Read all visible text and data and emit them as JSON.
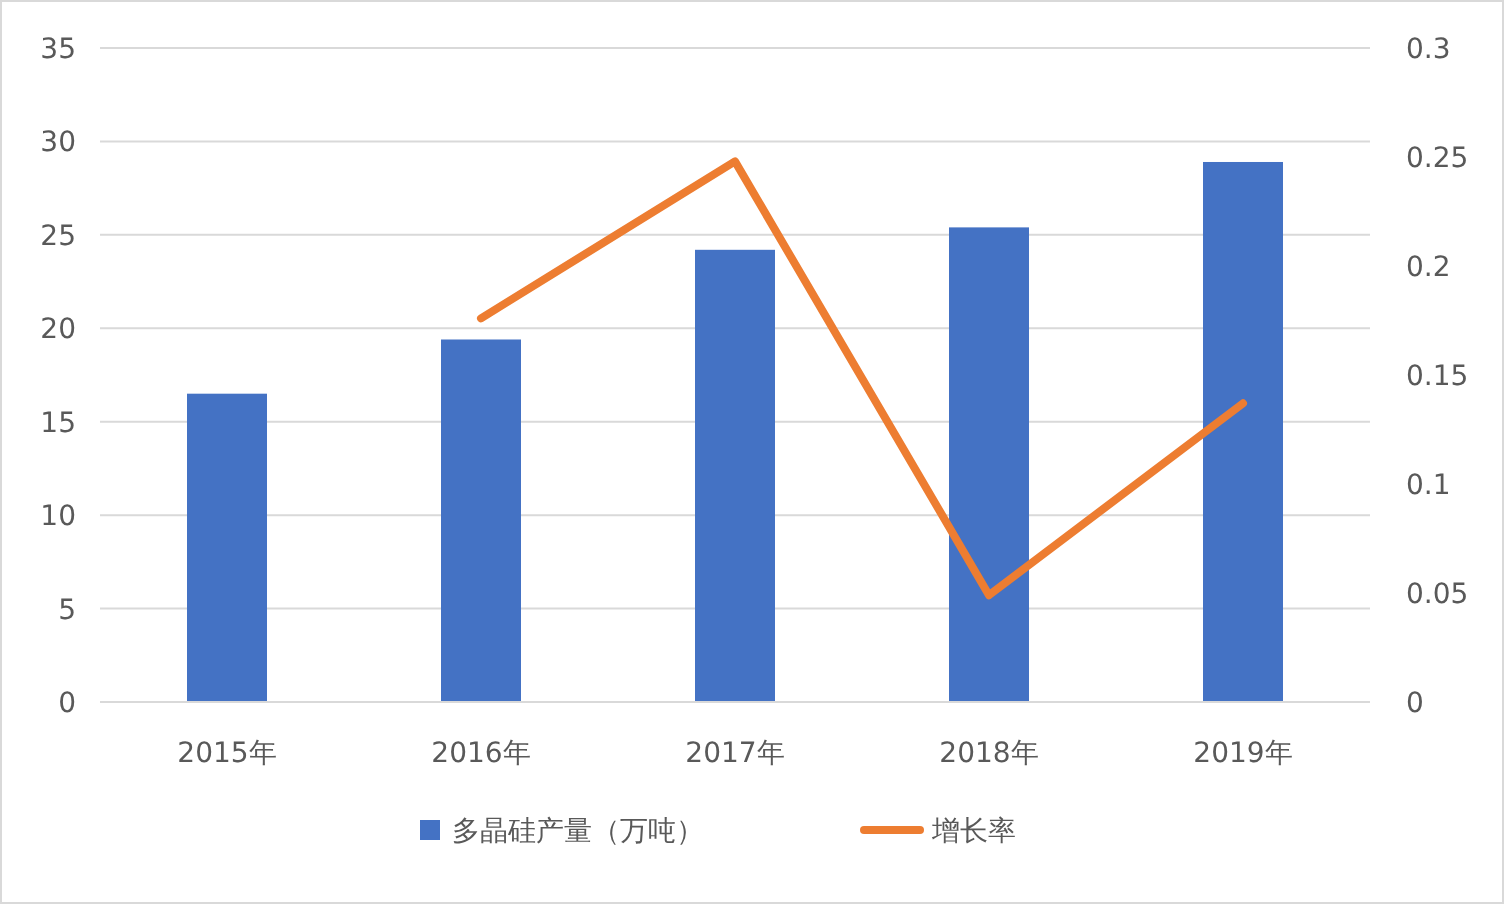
{
  "chart_data": {
    "type": "bar",
    "categories": [
      "2015年",
      "2016年",
      "2017年",
      "2018年",
      "2019年"
    ],
    "series": [
      {
        "name": "多晶硅产量（万吨）",
        "color": "#4472c4",
        "values": [
          16.5,
          19.4,
          24.2,
          25.4,
          28.9
        ]
      },
      {
        "name": "增长率",
        "type": "line",
        "axis": "y2",
        "color": "#ed7d31",
        "values": [
          null,
          0.176,
          0.248,
          0.049,
          0.137
        ]
      }
    ],
    "ylim": [
      0,
      35
    ],
    "yticks": [
      0,
      5,
      10,
      15,
      20,
      25,
      30,
      35
    ],
    "y2lim": [
      0,
      0.3
    ],
    "y2ticks": [
      0,
      0.05,
      0.1,
      0.15,
      0.2,
      0.25,
      0.3
    ],
    "grid": "y",
    "legend": "bottom",
    "marker": "none",
    "line_style": "solid"
  }
}
